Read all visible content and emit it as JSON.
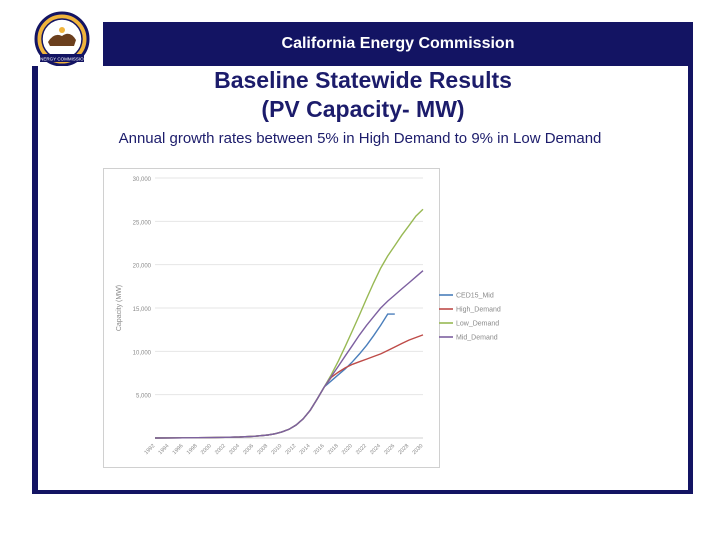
{
  "header": {
    "title": "California Energy Commission"
  },
  "slide": {
    "title_line1": "Baseline Statewide Results",
    "title_line2": "(PV Capacity- MW)",
    "subtitle": "Annual growth rates between 5% in High Demand to 9% in Low Demand"
  },
  "logo": {
    "icon": "california-energy-commission-seal-icon",
    "text": "ENERGY COMMISSION"
  },
  "colors": {
    "brand_navy": "#131463",
    "title_color": "#1c1c6b"
  },
  "chart_data": {
    "type": "line",
    "title": "",
    "xlabel": "",
    "ylabel": "Capacity (MW)",
    "xlim": [
      1992,
      2030
    ],
    "ylim": [
      0,
      30000
    ],
    "yticks": [
      5000,
      10000,
      15000,
      20000,
      25000,
      30000
    ],
    "ytick_labels": [
      "5,000",
      "10,000",
      "15,000",
      "20,000",
      "25,000",
      "30,000"
    ],
    "xticks": [
      1992,
      1994,
      1996,
      1998,
      2000,
      2002,
      2004,
      2006,
      2008,
      2010,
      2012,
      2014,
      2016,
      2018,
      2020,
      2022,
      2024,
      2026,
      2028,
      2030
    ],
    "grid": true,
    "legend_position": "right",
    "series": [
      {
        "name": "CED15_Mid",
        "color": "#4a7ebb",
        "x": [
          1992,
          1994,
          1996,
          1998,
          2000,
          2002,
          2004,
          2006,
          2008,
          2009,
          2010,
          2011,
          2012,
          2013,
          2014,
          2015,
          2016,
          2017,
          2018,
          2019,
          2020,
          2021,
          2022,
          2023,
          2024,
          2025,
          2026
        ],
        "values": [
          0,
          10,
          20,
          30,
          50,
          80,
          120,
          200,
          350,
          480,
          700,
          1000,
          1500,
          2200,
          3200,
          4500,
          5900,
          6600,
          7300,
          8000,
          8800,
          9700,
          10700,
          11800,
          13000,
          14300,
          14300
        ]
      },
      {
        "name": "High_Demand",
        "color": "#be4b48",
        "x": [
          1992,
          1994,
          1996,
          1998,
          2000,
          2002,
          2004,
          2006,
          2008,
          2009,
          2010,
          2011,
          2012,
          2013,
          2014,
          2015,
          2016,
          2017,
          2018,
          2019,
          2020,
          2021,
          2022,
          2023,
          2024,
          2025,
          2026,
          2027,
          2028,
          2029,
          2030
        ],
        "values": [
          0,
          10,
          20,
          30,
          50,
          80,
          120,
          200,
          350,
          480,
          700,
          1000,
          1500,
          2200,
          3200,
          4500,
          5900,
          7000,
          7600,
          8100,
          8500,
          8800,
          9100,
          9400,
          9700,
          10100,
          10500,
          10900,
          11300,
          11600,
          11900
        ]
      },
      {
        "name": "Low_Demand",
        "color": "#98b954",
        "x": [
          1992,
          1994,
          1996,
          1998,
          2000,
          2002,
          2004,
          2006,
          2008,
          2009,
          2010,
          2011,
          2012,
          2013,
          2014,
          2015,
          2016,
          2017,
          2018,
          2019,
          2020,
          2021,
          2022,
          2023,
          2024,
          2025,
          2026,
          2027,
          2028,
          2029,
          2030
        ],
        "values": [
          0,
          10,
          20,
          30,
          50,
          80,
          120,
          200,
          350,
          480,
          700,
          1000,
          1500,
          2200,
          3200,
          4500,
          5900,
          7300,
          8900,
          10600,
          12400,
          14200,
          16100,
          17900,
          19600,
          21000,
          22200,
          23400,
          24500,
          25600,
          26400
        ]
      },
      {
        "name": "Mid_Demand",
        "color": "#7d60a0",
        "x": [
          1992,
          1994,
          1996,
          1998,
          2000,
          2002,
          2004,
          2006,
          2008,
          2009,
          2010,
          2011,
          2012,
          2013,
          2014,
          2015,
          2016,
          2017,
          2018,
          2019,
          2020,
          2021,
          2022,
          2023,
          2024,
          2025,
          2026,
          2027,
          2028,
          2029,
          2030
        ],
        "values": [
          0,
          10,
          20,
          30,
          50,
          80,
          120,
          200,
          350,
          480,
          700,
          1000,
          1500,
          2200,
          3200,
          4500,
          5900,
          7100,
          8300,
          9500,
          10700,
          11900,
          13000,
          14000,
          15000,
          15800,
          16500,
          17200,
          17900,
          18600,
          19300
        ]
      }
    ]
  }
}
